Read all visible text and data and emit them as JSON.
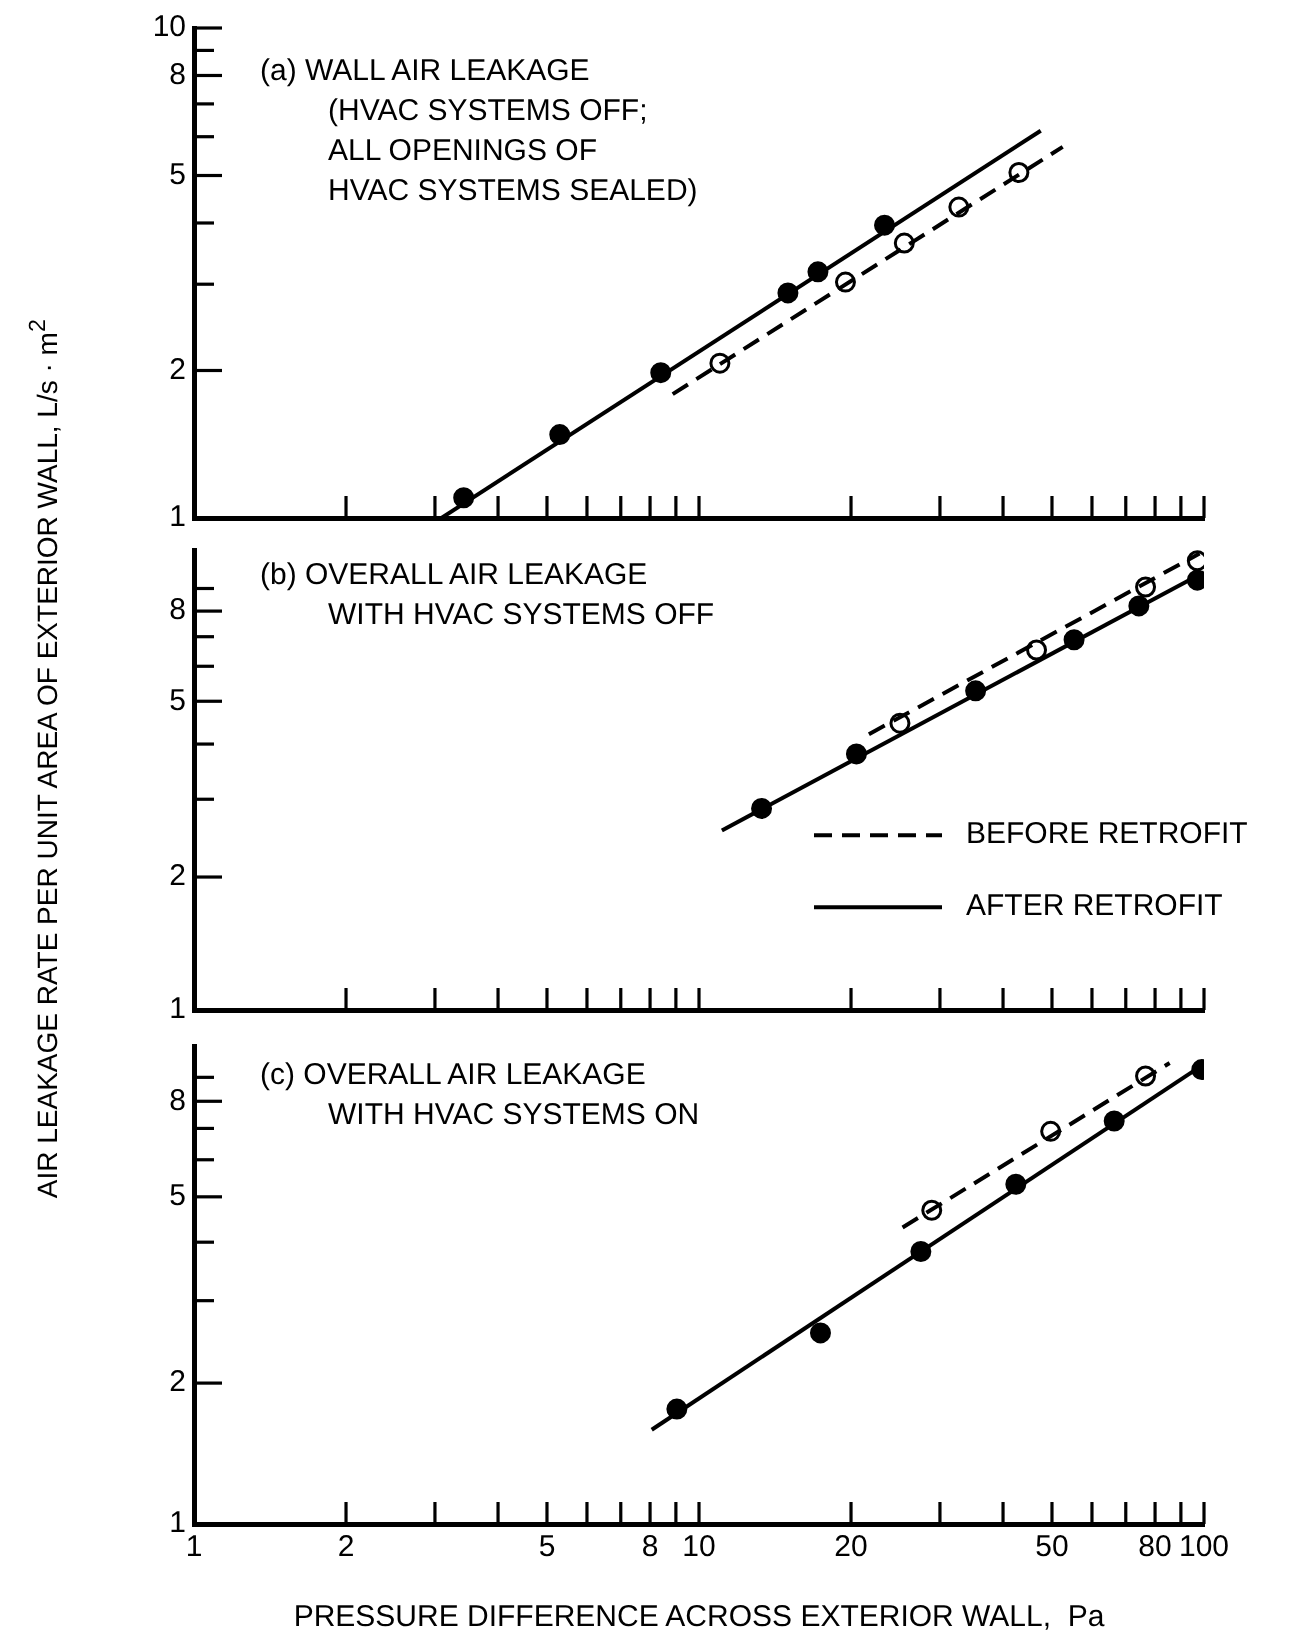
{
  "chart_data": [
    {
      "type": "scatter",
      "title": "(a) WALL AIR LEAKAGE\n(HVAC SYSTEMS OFF;\nALL OPENINGS OF\nHVAC SYSTEMS SEALED)",
      "log": "xy",
      "grid": false,
      "tick_labels": "y",
      "xlim": [
        1,
        100
      ],
      "ylim": [
        1,
        10
      ],
      "xticks": [
        1,
        2,
        {
          "value": 3,
          "label": null
        },
        {
          "value": 4,
          "label": null
        },
        5,
        {
          "value": 6,
          "label": null
        },
        {
          "value": 7,
          "label": null
        },
        8,
        {
          "value": 9,
          "label": null
        },
        10,
        20,
        {
          "value": 30,
          "label": null
        },
        {
          "value": 40,
          "label": null
        },
        50,
        {
          "value": 60,
          "label": null
        },
        {
          "value": 70,
          "label": null
        },
        80,
        {
          "value": 90,
          "label": null
        },
        100
      ],
      "yticks": [
        1,
        2,
        {
          "value": 3,
          "label": null
        },
        {
          "value": 4,
          "label": null
        },
        5,
        {
          "value": 6,
          "label": null
        },
        {
          "value": 7,
          "label": null
        },
        8,
        {
          "value": 9,
          "label": null
        },
        10
      ],
      "series": [
        {
          "type": "line",
          "x": [
            8.87,
            52.5
          ],
          "values": [
            1.79,
            5.72
          ],
          "color": "#000000",
          "line_style": "dashed",
          "marker": "none"
        },
        {
          "type": "line",
          "x": [
            3.09,
            47.5
          ],
          "values": [
            1.0,
            6.17
          ],
          "color": "#000000",
          "line_style": "solid",
          "marker": "none"
        },
        {
          "type": "scatter",
          "x": [
            11,
            19.5,
            25.5,
            32.7,
            43
          ],
          "values": [
            2.07,
            3.03,
            3.64,
            4.31,
            5.07
          ],
          "color": "#ffffff",
          "marker": "circle"
        },
        {
          "type": "scatter",
          "x": [
            3.42,
            5.3,
            8.4,
            15,
            17.2,
            23.3
          ],
          "values": [
            1.1,
            1.48,
            1.98,
            2.88,
            3.18,
            3.96
          ],
          "color": "#000000",
          "marker": "circle"
        }
      ]
    },
    {
      "type": "scatter",
      "title": "(b) OVERALL AIR LEAKAGE\nWITH HVAC SYSTEMS OFF",
      "ylabel": "AIR LEAKAGE RATE PER UNIT AREA OF EXTERIOR WALL,  L/s · m$^{2}$",
      "log": "xy",
      "grid": false,
      "tick_labels": "y",
      "legend": "right",
      "xlim": [
        1,
        100
      ],
      "ylim": [
        1,
        11
      ],
      "xticks": [
        1,
        2,
        {
          "value": 3,
          "label": null
        },
        {
          "value": 4,
          "label": null
        },
        5,
        {
          "value": 6,
          "label": null
        },
        {
          "value": 7,
          "label": null
        },
        8,
        {
          "value": 9,
          "label": null
        },
        10,
        20,
        {
          "value": 30,
          "label": null
        },
        {
          "value": 40,
          "label": null
        },
        50,
        {
          "value": 60,
          "label": null
        },
        {
          "value": 70,
          "label": null
        },
        80,
        {
          "value": 90,
          "label": null
        },
        100
      ],
      "yticks": [
        1,
        2,
        {
          "value": 3,
          "label": null
        },
        {
          "value": 4,
          "label": null
        },
        5,
        {
          "value": 6,
          "label": null
        },
        {
          "value": 7,
          "label": null
        },
        8,
        {
          "value": 9,
          "label": null
        }
      ],
      "series": [
        {
          "type": "line",
          "name": "BEFORE RETROFIT",
          "x": [
            21.7,
            98
          ],
          "values": [
            4.21,
            10.8
          ],
          "color": "#000000",
          "line_style": "dashed",
          "marker": "none"
        },
        {
          "type": "line",
          "name": "AFTER RETROFIT",
          "x": [
            11.1,
            100
          ],
          "values": [
            2.55,
            9.8
          ],
          "color": "#000000",
          "line_style": "solid",
          "marker": "none"
        },
        {
          "type": "scatter",
          "x": [
            25,
            46.6,
            76.6,
            97
          ],
          "values": [
            4.46,
            6.53,
            9.07,
            10.4
          ],
          "color": "#ffffff",
          "marker": "circle"
        },
        {
          "type": "scatter",
          "x": [
            13.3,
            20.5,
            35.3,
            55.3,
            74.3,
            97
          ],
          "values": [
            2.86,
            3.8,
            5.28,
            6.89,
            8.22,
            9.4
          ],
          "color": "#000000",
          "marker": "circle"
        }
      ]
    },
    {
      "type": "scatter",
      "title": "(c) OVERALL AIR LEAKAGE\nWITH HVAC SYSTEMS ON",
      "xlabel": "PRESSURE DIFFERENCE ACROSS EXTERIOR WALL,  Pa",
      "log": "xy",
      "grid": false,
      "xlim": [
        1,
        100
      ],
      "ylim": [
        1,
        10.5
      ],
      "xticks": [
        1,
        2,
        {
          "value": 3,
          "label": null
        },
        {
          "value": 4,
          "label": null
        },
        5,
        {
          "value": 6,
          "label": null
        },
        {
          "value": 7,
          "label": null
        },
        8,
        {
          "value": 9,
          "label": null
        },
        10,
        20,
        {
          "value": 30,
          "label": null
        },
        {
          "value": 40,
          "label": null
        },
        50,
        {
          "value": 60,
          "label": null
        },
        {
          "value": 70,
          "label": null
        },
        80,
        {
          "value": 90,
          "label": null
        },
        100
      ],
      "yticks": [
        1,
        2,
        {
          "value": 3,
          "label": null
        },
        {
          "value": 4,
          "label": null
        },
        5,
        {
          "value": 6,
          "label": null
        },
        {
          "value": 7,
          "label": null
        },
        8,
        {
          "value": 9,
          "label": null
        }
      ],
      "series": [
        {
          "type": "line",
          "x": [
            25.3,
            85.5
          ],
          "values": [
            4.3,
            9.66
          ],
          "color": "#000000",
          "line_style": "dashed",
          "marker": "none"
        },
        {
          "type": "line",
          "x": [
            8.06,
            100
          ],
          "values": [
            1.59,
            9.6
          ],
          "color": "#000000",
          "line_style": "solid",
          "marker": "none"
        },
        {
          "type": "scatter",
          "x": [
            28.9,
            49.7,
            76.6
          ],
          "values": [
            4.68,
            6.9,
            9.06
          ],
          "color": "#ffffff",
          "marker": "circle"
        },
        {
          "type": "scatter",
          "x": [
            9.04,
            17.4,
            27.5,
            42.4,
            66.4,
            99
          ],
          "values": [
            1.76,
            2.56,
            3.82,
            5.32,
            7.26,
            9.35
          ],
          "color": "#000000",
          "marker": "circle"
        }
      ]
    }
  ]
}
